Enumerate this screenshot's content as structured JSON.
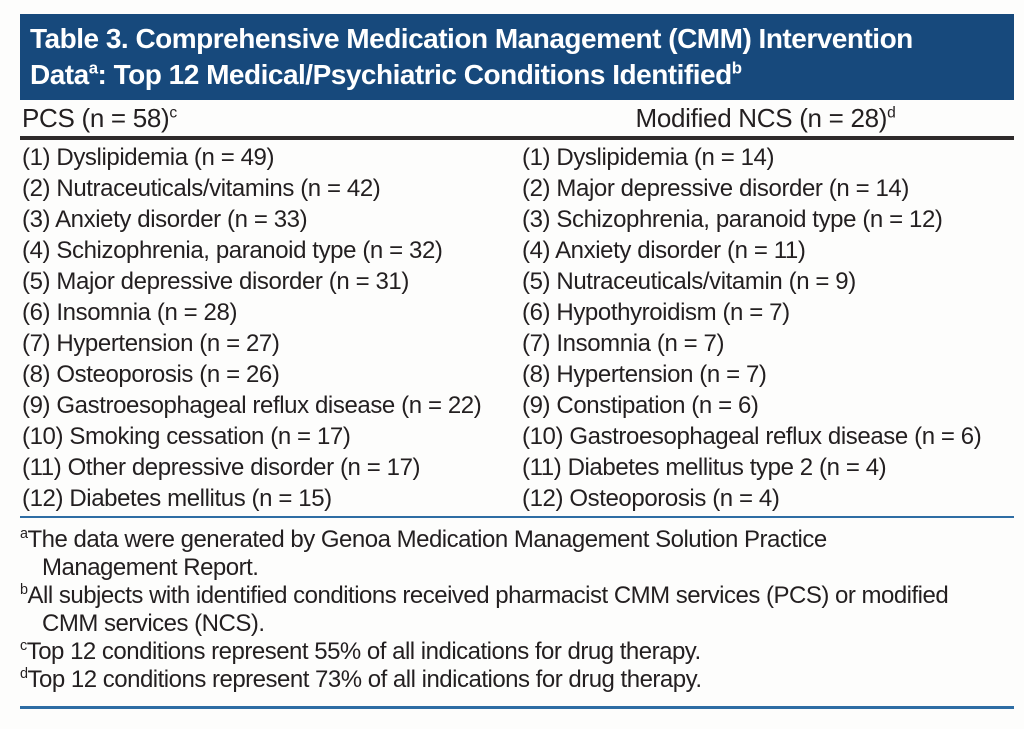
{
  "title": {
    "line1": "Table 3. Comprehensive Medication Management (CMM) Intervention",
    "line2_pre": "Data",
    "line2_sup_a": "a",
    "line2_post": ": Top 12 Medical/Psychiatric Conditions Identified",
    "line2_sup_b": "b"
  },
  "columns": [
    {
      "header": "PCS (n = 58)",
      "header_sup": "c",
      "items": [
        "(1) Dyslipidemia (n = 49)",
        "(2) Nutraceuticals/vitamins (n = 42)",
        "(3) Anxiety disorder (n = 33)",
        "(4) Schizophrenia, paranoid type (n = 32)",
        "(5) Major depressive disorder (n = 31)",
        "(6) Insomnia (n = 28)",
        "(7) Hypertension (n = 27)",
        "(8) Osteoporosis (n = 26)",
        "(9) Gastroesophageal reflux disease (n = 22)",
        "(10) Smoking cessation (n = 17)",
        "(11) Other depressive disorder (n = 17)",
        "(12) Diabetes mellitus (n = 15)"
      ]
    },
    {
      "header": "Modified NCS (n = 28)",
      "header_sup": "d",
      "items": [
        "(1) Dyslipidemia (n = 14)",
        "(2) Major depressive disorder (n = 14)",
        "(3) Schizophrenia, paranoid type (n = 12)",
        "(4) Anxiety disorder (n = 11)",
        "(5) Nutraceuticals/vitamin (n = 9)",
        "(6) Hypothyroidism (n = 7)",
        "(7) Insomnia (n = 7)",
        "(8) Hypertension (n = 7)",
        "(9) Constipation (n = 6)",
        "(10) Gastroesophageal reflux disease (n = 6)",
        "(11) Diabetes mellitus type 2 (n = 4)",
        "(12) Osteoporosis (n = 4)"
      ]
    }
  ],
  "footnotes": [
    {
      "marker": "a",
      "line1": "The data were generated by Genoa Medication Management Solution Practice",
      "line2": "Management Report."
    },
    {
      "marker": "b",
      "line1": "All subjects with identified conditions received pharmacist CMM services (PCS) or modified",
      "line2": "CMM services (NCS)."
    },
    {
      "marker": "c",
      "line1": "Top 12 conditions represent 55% of all indications for drug therapy."
    },
    {
      "marker": "d",
      "line1": "Top 12 conditions represent 73% of all indications for drug therapy."
    }
  ],
  "colors": {
    "title_bar_bg": "#17497C",
    "title_bar_text": "#FFFFFF",
    "body_text": "#231F20",
    "header_rule": "#2E2A2B",
    "blue_rule": "#2E6DA4"
  }
}
